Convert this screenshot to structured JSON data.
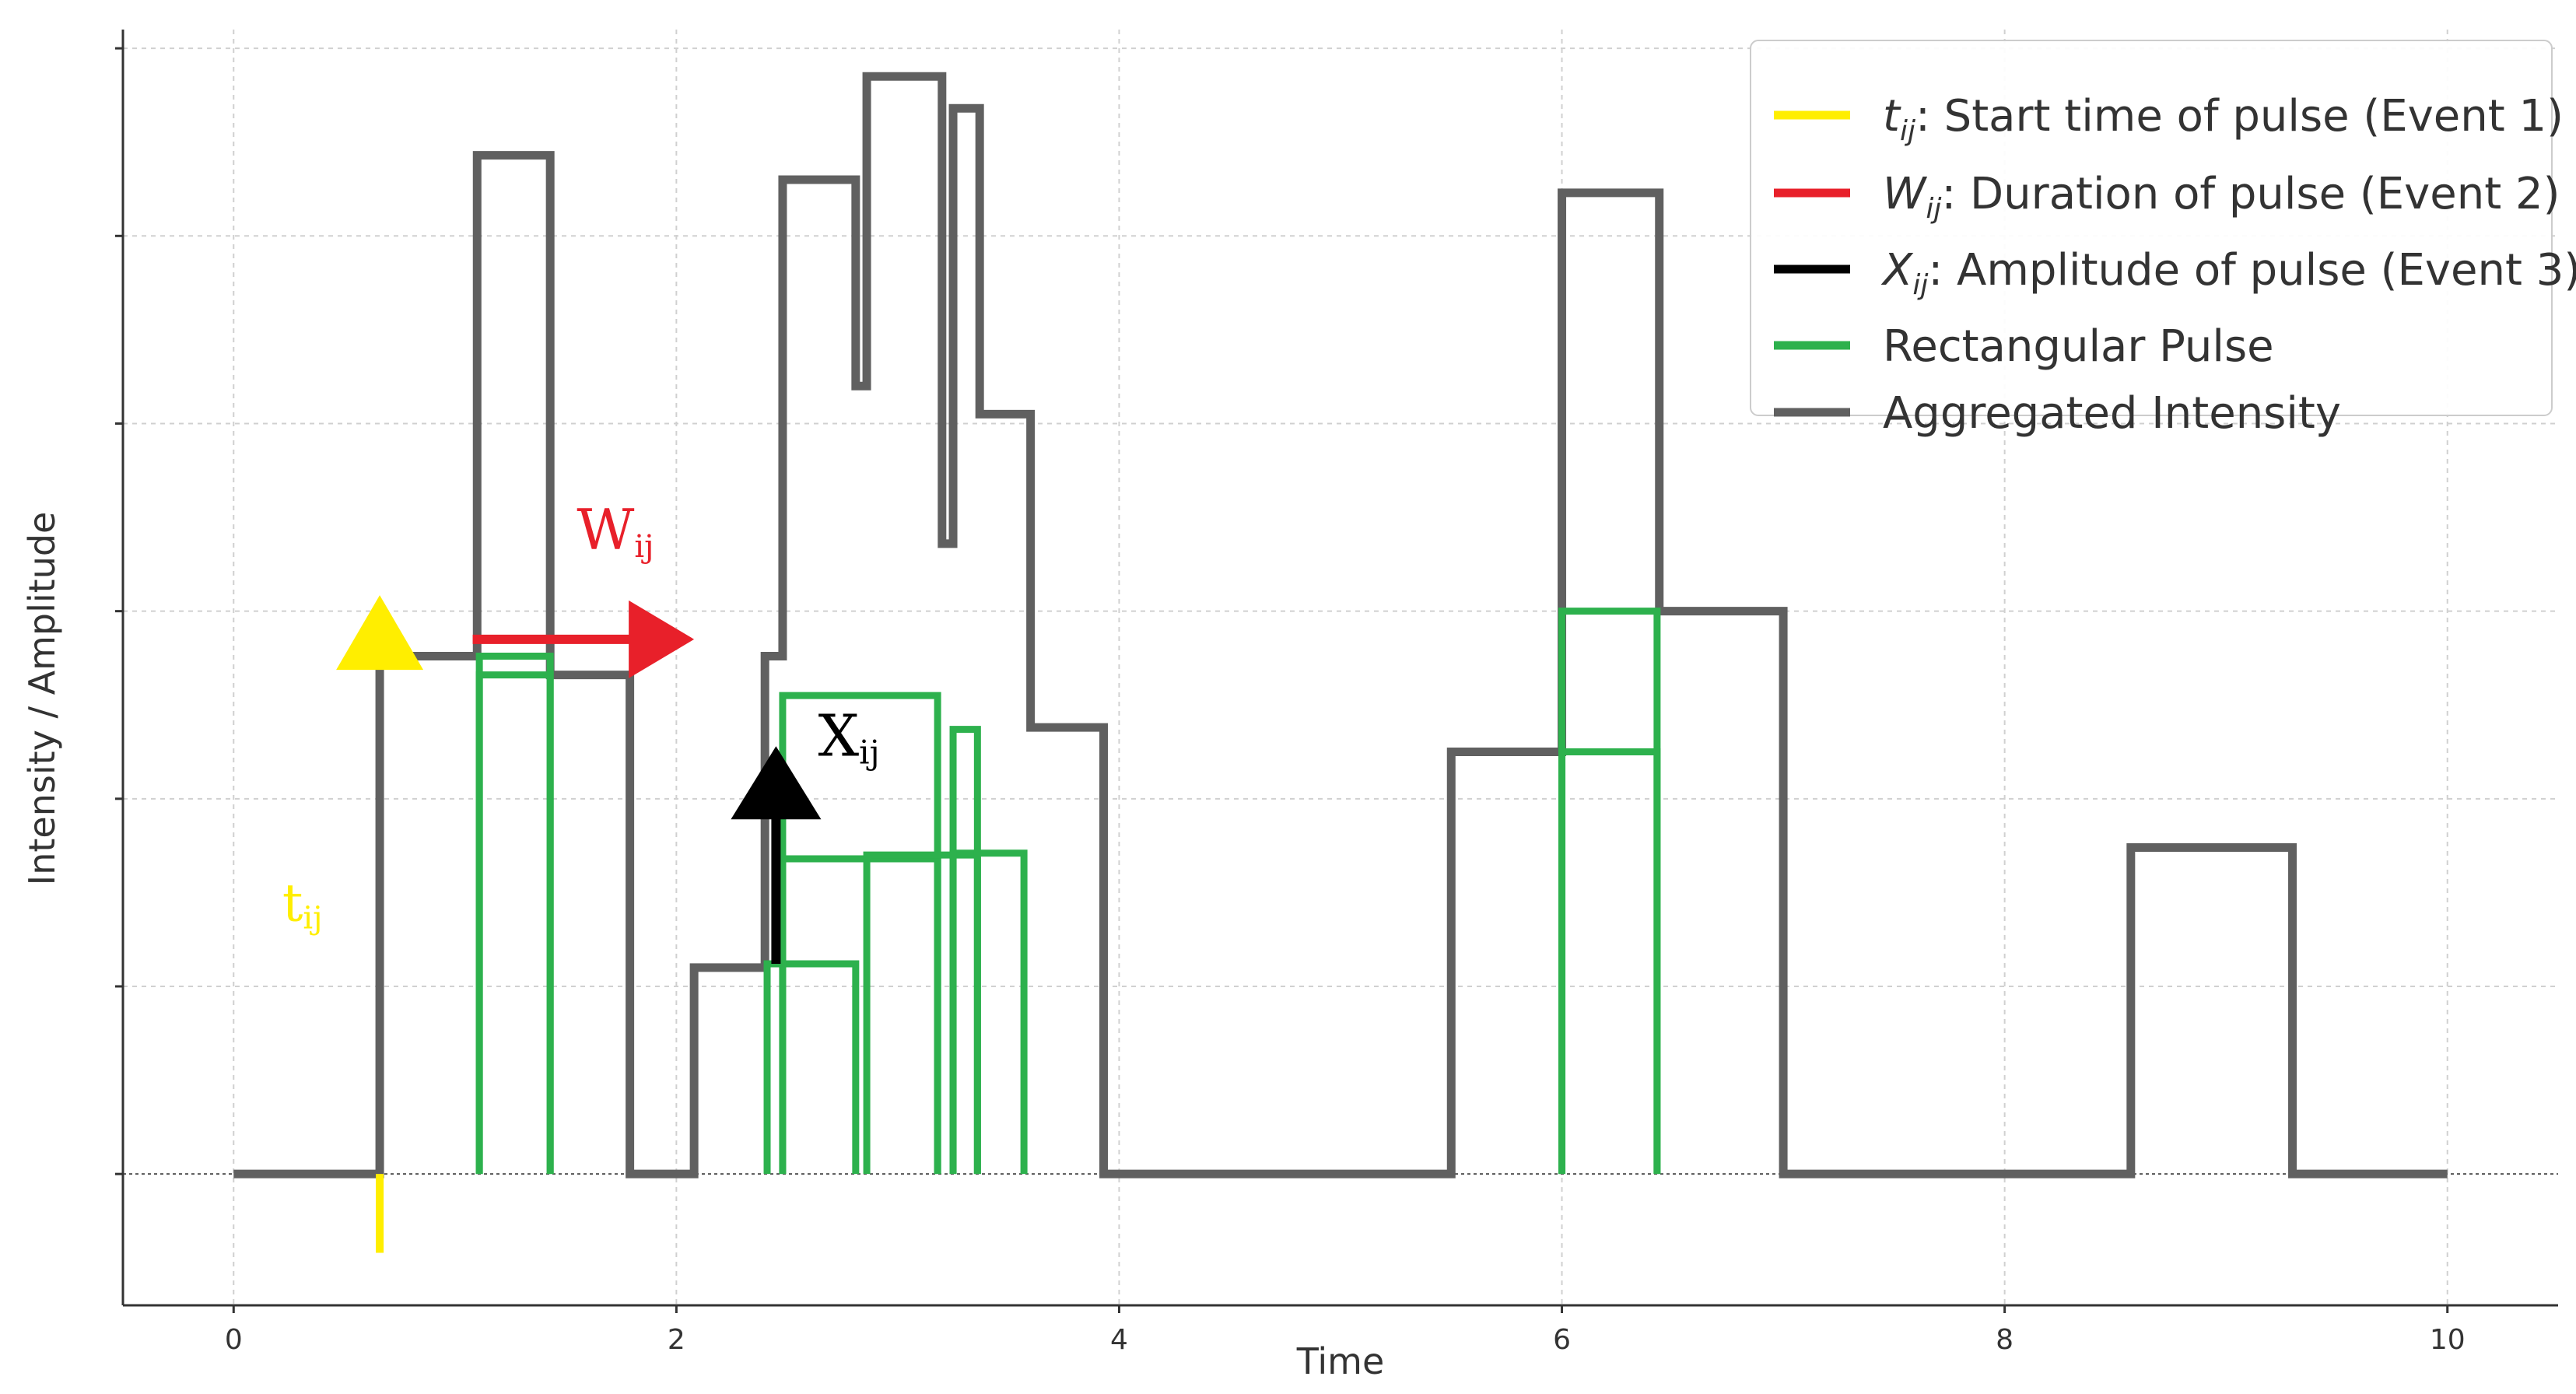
{
  "chart_data": {
    "type": "line",
    "xlabel": "Time",
    "ylabel": "Intensity / Amplitude",
    "xlim": [
      -0.5,
      10.5
    ],
    "ylim": [
      -0.7,
      6.1
    ],
    "x_ticks": [
      0,
      2,
      4,
      6,
      8,
      10
    ],
    "x_tick_labels": [
      "0",
      "2",
      "4",
      "6",
      "8",
      "10"
    ],
    "y_gridlines": [
      0,
      1,
      2,
      3,
      4,
      5,
      6
    ],
    "y_tick_labels_shown": false,
    "grid": true,
    "legend_position": "top-right",
    "colors": {
      "start": "#ffee00",
      "duration": "#e8202a",
      "amplitude": "#000000",
      "pulse": "#2db14d",
      "aggregate": "#606060",
      "axis": "#333333",
      "grid": "#d0d0d0"
    },
    "legend": [
      {
        "symbol": "t",
        "sub": "ij",
        "rest": ": Start time of pulse (Event 1)",
        "color_key": "start"
      },
      {
        "symbol": "W",
        "sub": "ij",
        "rest": ": Duration of pulse (Event 2)",
        "color_key": "duration"
      },
      {
        "symbol": "X",
        "sub": "ij",
        "rest": ": Amplitude of pulse (Event 3)",
        "color_key": "amplitude"
      },
      {
        "symbol": "",
        "sub": "",
        "rest": "Rectangular Pulse",
        "color_key": "pulse"
      },
      {
        "symbol": "",
        "sub": "",
        "rest": "Aggregated Intensity",
        "color_key": "aggregate"
      }
    ],
    "aggregated_intensity": {
      "x": [
        0,
        0.66,
        0.66,
        0.86,
        0.86,
        1.1,
        1.1,
        1.43,
        1.43,
        1.79,
        1.79,
        2.08,
        2.08,
        2.4,
        2.4,
        2.48,
        2.48,
        2.81,
        2.81,
        2.86,
        2.86,
        3.2,
        3.2,
        3.25,
        3.25,
        3.37,
        3.37,
        3.6,
        3.6,
        3.93,
        3.93,
        5.5,
        5.5,
        6.0,
        6.0,
        6.44,
        6.44,
        7.0,
        7.0,
        8.57,
        8.57,
        9.3,
        9.3,
        10.0
      ],
      "y": [
        0,
        0,
        2.76,
        2.76,
        2.76,
        2.76,
        5.43,
        5.43,
        2.66,
        2.66,
        0,
        0,
        1.1,
        1.1,
        2.76,
        2.76,
        5.3,
        5.3,
        4.2,
        4.2,
        5.85,
        5.85,
        3.36,
        3.36,
        5.68,
        5.68,
        4.05,
        4.05,
        2.38,
        2.38,
        0,
        0,
        2.25,
        2.25,
        5.23,
        5.23,
        3.0,
        3.0,
        0,
        0,
        1.74,
        1.74,
        0,
        0
      ]
    },
    "rectangular_pulses": [
      {
        "start": 1.11,
        "end": 1.43,
        "amplitude": 2.76
      },
      {
        "start": 1.11,
        "end": 1.43,
        "amplitude": 2.66
      },
      {
        "start": 2.41,
        "end": 2.81,
        "amplitude": 1.12
      },
      {
        "start": 2.48,
        "end": 3.18,
        "amplitude": 2.55
      },
      {
        "start": 2.48,
        "end": 3.18,
        "amplitude": 1.68
      },
      {
        "start": 2.86,
        "end": 3.36,
        "amplitude": 1.7
      },
      {
        "start": 3.25,
        "end": 3.57,
        "amplitude": 1.71
      },
      {
        "start": 3.25,
        "end": 3.36,
        "amplitude": 2.37
      },
      {
        "start": 6.0,
        "end": 6.43,
        "amplitude": 3.0
      },
      {
        "start": 6.0,
        "end": 6.43,
        "amplitude": 2.25
      }
    ],
    "annotations": {
      "start": {
        "label": "t",
        "sub": "ij",
        "label_x": 0.22,
        "label_y": 1.35,
        "x": 0.66,
        "y_from": -0.42,
        "y_to": 3.06
      },
      "duration": {
        "label": "W",
        "sub": "ij",
        "label_x": 1.55,
        "label_y": 3.33,
        "y": 2.85,
        "x_from": 1.08,
        "x_to": 2.08
      },
      "amplitude": {
        "label": "X",
        "sub": "ij",
        "label_x": 2.64,
        "label_y": 2.23,
        "x": 2.45,
        "y_from": 1.12,
        "y_to": 2.28
      }
    }
  }
}
